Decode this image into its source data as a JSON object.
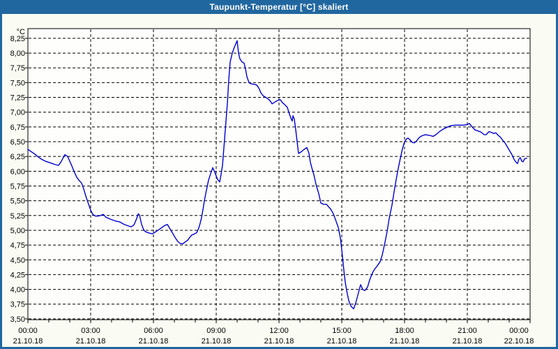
{
  "window": {
    "title": "Taupunkt-Temperatur [°C] skaliert"
  },
  "colors": {
    "accent_blue": "#21679f",
    "background": "#fafcf3",
    "plot_background": "#fefefc",
    "grid": "#000000",
    "line": "#0000cd"
  },
  "chart_data": {
    "type": "line",
    "title": "Taupunkt-Temperatur [°C] skaliert",
    "unit_label": "°C",
    "xlabel": "",
    "ylabel": "°C",
    "ylim": [
      3.5,
      8.25
    ],
    "y_step": 0.25,
    "x_range_minutes": [
      0,
      1440
    ],
    "grid": "dashed",
    "legend": "none",
    "line_color": "#0000cd",
    "plot_bg": "#fefefc",
    "y_ticks": [
      [
        8.25,
        "8,25"
      ],
      [
        8.0,
        "8,00"
      ],
      [
        7.75,
        "7,75"
      ],
      [
        7.5,
        "7,50"
      ],
      [
        7.25,
        "7,25"
      ],
      [
        7.0,
        "7,00"
      ],
      [
        6.75,
        "6,75"
      ],
      [
        6.5,
        "6,50"
      ],
      [
        6.25,
        "6,25"
      ],
      [
        6.0,
        "6,00"
      ],
      [
        5.75,
        "5,75"
      ],
      [
        5.5,
        "5,50"
      ],
      [
        5.25,
        "5,25"
      ],
      [
        5.0,
        "5,00"
      ],
      [
        4.75,
        "4,75"
      ],
      [
        4.5,
        "4,50"
      ],
      [
        4.25,
        "4,25"
      ],
      [
        4.0,
        "4,00"
      ],
      [
        3.75,
        "3,75"
      ],
      [
        3.5,
        "3,50"
      ]
    ],
    "x_ticks": [
      [
        0,
        "00:00",
        "21.10.18"
      ],
      [
        180,
        "03:00",
        "21.10.18"
      ],
      [
        360,
        "06:00",
        "21.10.18"
      ],
      [
        540,
        "09:00",
        "21.10.18"
      ],
      [
        720,
        "12:00",
        "21.10.18"
      ],
      [
        900,
        "15:00",
        "21.10.18"
      ],
      [
        1080,
        "18:00",
        "21.10.18"
      ],
      [
        1260,
        "21:00",
        "21.10.18"
      ],
      [
        1440,
        "00:00",
        "22.10.18"
      ]
    ],
    "minor_tick_minutes": 60,
    "points": [
      [
        0,
        6.37
      ],
      [
        10,
        6.33
      ],
      [
        20,
        6.29
      ],
      [
        30,
        6.24
      ],
      [
        40,
        6.2
      ],
      [
        50,
        6.17
      ],
      [
        60,
        6.15
      ],
      [
        70,
        6.13
      ],
      [
        80,
        6.11
      ],
      [
        88,
        6.1
      ],
      [
        95,
        6.16
      ],
      [
        106,
        6.28
      ],
      [
        114,
        6.25
      ],
      [
        120,
        6.17
      ],
      [
        126,
        6.09
      ],
      [
        132,
        6.0
      ],
      [
        140,
        5.9
      ],
      [
        146,
        5.85
      ],
      [
        154,
        5.8
      ],
      [
        160,
        5.7
      ],
      [
        166,
        5.58
      ],
      [
        174,
        5.44
      ],
      [
        180,
        5.34
      ],
      [
        186,
        5.27
      ],
      [
        194,
        5.24
      ],
      [
        200,
        5.24
      ],
      [
        208,
        5.25
      ],
      [
        216,
        5.27
      ],
      [
        224,
        5.22
      ],
      [
        236,
        5.19
      ],
      [
        250,
        5.16
      ],
      [
        264,
        5.14
      ],
      [
        276,
        5.1
      ],
      [
        290,
        5.07
      ],
      [
        296,
        5.06
      ],
      [
        304,
        5.09
      ],
      [
        312,
        5.2
      ],
      [
        316,
        5.28
      ],
      [
        320,
        5.26
      ],
      [
        326,
        5.1
      ],
      [
        332,
        5.01
      ],
      [
        336,
        4.98
      ],
      [
        344,
        4.96
      ],
      [
        356,
        4.94
      ],
      [
        360,
        4.95
      ],
      [
        368,
        4.98
      ],
      [
        380,
        5.03
      ],
      [
        392,
        5.08
      ],
      [
        400,
        5.1
      ],
      [
        406,
        5.04
      ],
      [
        410,
        5.0
      ],
      [
        416,
        4.94
      ],
      [
        424,
        4.86
      ],
      [
        430,
        4.81
      ],
      [
        436,
        4.78
      ],
      [
        444,
        4.77
      ],
      [
        450,
        4.8
      ],
      [
        458,
        4.83
      ],
      [
        464,
        4.88
      ],
      [
        470,
        4.92
      ],
      [
        478,
        4.94
      ],
      [
        484,
        4.96
      ],
      [
        490,
        5.04
      ],
      [
        494,
        5.12
      ],
      [
        498,
        5.22
      ],
      [
        502,
        5.35
      ],
      [
        506,
        5.5
      ],
      [
        512,
        5.68
      ],
      [
        518,
        5.85
      ],
      [
        524,
        5.96
      ],
      [
        530,
        6.06
      ],
      [
        536,
        5.98
      ],
      [
        544,
        5.86
      ],
      [
        550,
        5.82
      ],
      [
        554,
        5.95
      ],
      [
        558,
        6.1
      ],
      [
        560,
        6.25
      ],
      [
        564,
        6.55
      ],
      [
        568,
        6.85
      ],
      [
        572,
        7.15
      ],
      [
        576,
        7.55
      ],
      [
        580,
        7.85
      ],
      [
        586,
        8.0
      ],
      [
        592,
        8.1
      ],
      [
        600,
        8.21
      ],
      [
        604,
        8.0
      ],
      [
        608,
        7.9
      ],
      [
        614,
        7.85
      ],
      [
        620,
        7.83
      ],
      [
        624,
        7.73
      ],
      [
        628,
        7.6
      ],
      [
        634,
        7.5
      ],
      [
        640,
        7.48
      ],
      [
        650,
        7.47
      ],
      [
        656,
        7.46
      ],
      [
        662,
        7.41
      ],
      [
        668,
        7.33
      ],
      [
        674,
        7.28
      ],
      [
        682,
        7.25
      ],
      [
        690,
        7.22
      ],
      [
        696,
        7.18
      ],
      [
        700,
        7.14
      ],
      [
        708,
        7.17
      ],
      [
        716,
        7.2
      ],
      [
        724,
        7.21
      ],
      [
        730,
        7.16
      ],
      [
        736,
        7.13
      ],
      [
        744,
        7.08
      ],
      [
        748,
        7.0
      ],
      [
        754,
        6.9
      ],
      [
        758,
        6.85
      ],
      [
        760,
        6.94
      ],
      [
        764,
        6.88
      ],
      [
        768,
        6.7
      ],
      [
        772,
        6.5
      ],
      [
        776,
        6.3
      ],
      [
        784,
        6.33
      ],
      [
        792,
        6.37
      ],
      [
        800,
        6.4
      ],
      [
        806,
        6.3
      ],
      [
        810,
        6.15
      ],
      [
        814,
        6.06
      ],
      [
        820,
        5.94
      ],
      [
        826,
        5.78
      ],
      [
        834,
        5.62
      ],
      [
        840,
        5.46
      ],
      [
        848,
        5.44
      ],
      [
        856,
        5.44
      ],
      [
        862,
        5.4
      ],
      [
        868,
        5.36
      ],
      [
        876,
        5.28
      ],
      [
        882,
        5.18
      ],
      [
        890,
        5.05
      ],
      [
        896,
        4.87
      ],
      [
        900,
        4.67
      ],
      [
        906,
        4.32
      ],
      [
        910,
        4.12
      ],
      [
        914,
        3.98
      ],
      [
        920,
        3.81
      ],
      [
        926,
        3.72
      ],
      [
        934,
        3.67
      ],
      [
        940,
        3.77
      ],
      [
        946,
        3.9
      ],
      [
        954,
        4.08
      ],
      [
        960,
        4.0
      ],
      [
        966,
        3.98
      ],
      [
        974,
        4.04
      ],
      [
        980,
        4.16
      ],
      [
        988,
        4.28
      ],
      [
        994,
        4.34
      ],
      [
        1002,
        4.4
      ],
      [
        1010,
        4.47
      ],
      [
        1016,
        4.58
      ],
      [
        1024,
        4.8
      ],
      [
        1030,
        4.98
      ],
      [
        1036,
        5.2
      ],
      [
        1044,
        5.43
      ],
      [
        1050,
        5.65
      ],
      [
        1056,
        5.86
      ],
      [
        1062,
        6.05
      ],
      [
        1068,
        6.22
      ],
      [
        1074,
        6.38
      ],
      [
        1080,
        6.5
      ],
      [
        1086,
        6.55
      ],
      [
        1090,
        6.56
      ],
      [
        1096,
        6.53
      ],
      [
        1102,
        6.49
      ],
      [
        1108,
        6.48
      ],
      [
        1114,
        6.51
      ],
      [
        1122,
        6.57
      ],
      [
        1130,
        6.6
      ],
      [
        1140,
        6.62
      ],
      [
        1148,
        6.61
      ],
      [
        1156,
        6.6
      ],
      [
        1162,
        6.59
      ],
      [
        1170,
        6.62
      ],
      [
        1180,
        6.67
      ],
      [
        1190,
        6.71
      ],
      [
        1200,
        6.74
      ],
      [
        1212,
        6.77
      ],
      [
        1224,
        6.78
      ],
      [
        1236,
        6.78
      ],
      [
        1248,
        6.78
      ],
      [
        1260,
        6.79
      ],
      [
        1266,
        6.81
      ],
      [
        1274,
        6.75
      ],
      [
        1282,
        6.7
      ],
      [
        1292,
        6.68
      ],
      [
        1300,
        6.66
      ],
      [
        1308,
        6.62
      ],
      [
        1314,
        6.62
      ],
      [
        1322,
        6.67
      ],
      [
        1328,
        6.66
      ],
      [
        1336,
        6.64
      ],
      [
        1342,
        6.65
      ],
      [
        1348,
        6.61
      ],
      [
        1356,
        6.57
      ],
      [
        1362,
        6.52
      ],
      [
        1368,
        6.48
      ],
      [
        1376,
        6.4
      ],
      [
        1382,
        6.34
      ],
      [
        1388,
        6.28
      ],
      [
        1394,
        6.2
      ],
      [
        1400,
        6.15
      ],
      [
        1404,
        6.13
      ],
      [
        1408,
        6.21
      ],
      [
        1412,
        6.23
      ],
      [
        1416,
        6.17
      ],
      [
        1420,
        6.16
      ],
      [
        1424,
        6.21
      ],
      [
        1430,
        6.22
      ]
    ]
  }
}
